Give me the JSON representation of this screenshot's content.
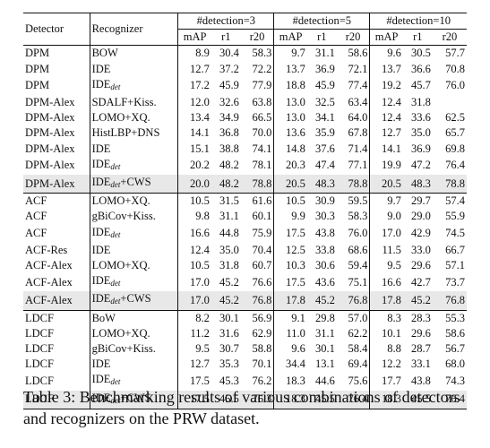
{
  "headers": {
    "detector": "Detector",
    "recognizer": "Recognizer",
    "groups": [
      "#detection=3",
      "#detection=5",
      "#detection=10"
    ],
    "metrics": [
      "mAP",
      "r1",
      "r20"
    ]
  },
  "rows": [
    {
      "det": "DPM",
      "rec": "BOW",
      "vals": [
        "8.9",
        "30.4",
        "58.3",
        "9.7",
        "31.1",
        "58.6",
        "9.6",
        "30.5",
        "57.7"
      ],
      "bold": []
    },
    {
      "det": "DPM",
      "rec": "IDE",
      "vals": [
        "12.7",
        "37.2",
        "72.2",
        "13.7",
        "36.9",
        "72.1",
        "13.7",
        "36.6",
        "70.8"
      ],
      "bold": []
    },
    {
      "det": "DPM",
      "rec": "IDE",
      "rec_sub": "det",
      "vals": [
        "17.2",
        "45.9",
        "77.9",
        "18.8",
        "45.9",
        "77.4",
        "19.2",
        "45.7",
        "76.0"
      ],
      "bold": []
    },
    {
      "det": "DPM-Alex",
      "rec": "SDALF+Kiss.",
      "vals": [
        "12.0",
        "32.6",
        "63.8",
        "13.0",
        "32.5",
        "63.4",
        "12.4",
        "31.8",
        ""
      ],
      "bold": []
    },
    {
      "det": "DPM-Alex",
      "rec": "LOMO+XQ.",
      "vals": [
        "13.4",
        "34.9",
        "66.5",
        "13.0",
        "34.1",
        "64.0",
        "12.4",
        "33.6",
        "62.5"
      ],
      "bold": []
    },
    {
      "det": "DPM-Alex",
      "rec": "HistLBP+DNS",
      "vals": [
        "14.1",
        "36.8",
        "70.0",
        "13.6",
        "35.9",
        "67.8",
        "12.7",
        "35.0",
        "65.7"
      ],
      "bold": []
    },
    {
      "det": "DPM-Alex",
      "rec": "IDE",
      "vals": [
        "15.1",
        "38.8",
        "74.1",
        "14.8",
        "37.6",
        "71.4",
        "14.1",
        "36.9",
        "69.8"
      ],
      "bold": []
    },
    {
      "det": "DPM-Alex",
      "rec": "IDE",
      "rec_sub": "det",
      "vals": [
        "20.2",
        "48.2",
        "78.1",
        "20.3",
        "47.4",
        "77.1",
        "19.9",
        "47.2",
        "76.4"
      ],
      "bold": [
        0,
        1
      ]
    },
    {
      "det": "DPM-Alex",
      "rec": "IDE",
      "rec_sub": "det",
      "rec_suffix": "+CWS",
      "vals": [
        "20.0",
        "48.2",
        "78.8",
        "20.5",
        "48.3",
        "78.8",
        "20.5",
        "48.3",
        "78.8"
      ],
      "bold": [
        1,
        2,
        3,
        4,
        5,
        6,
        7,
        8
      ],
      "highlight": true
    },
    {
      "det": "ACF",
      "rec": "LOMO+XQ.",
      "vals": [
        "10.5",
        "31.5",
        "61.6",
        "10.5",
        "30.9",
        "59.5",
        "9.7",
        "29.7",
        "57.4"
      ],
      "bold": [],
      "group_start": true
    },
    {
      "det": "ACF",
      "rec": "gBiCov+Kiss.",
      "vals": [
        "9.8",
        "31.1",
        "60.1",
        "9.9",
        "30.3",
        "58.3",
        "9.0",
        "29.0",
        "55.9"
      ],
      "bold": []
    },
    {
      "det": "ACF",
      "rec": "IDE",
      "rec_sub": "det",
      "vals": [
        "16.6",
        "44.8",
        "75.9",
        "17.5",
        "43.8",
        "76.0",
        "17.0",
        "42.9",
        "74.5"
      ],
      "bold": []
    },
    {
      "det": "ACF-Res",
      "rec": "IDE",
      "vals": [
        "12.4",
        "35.0",
        "70.4",
        "12.5",
        "33.8",
        "68.6",
        "11.5",
        "33.0",
        "66.7"
      ],
      "bold": []
    },
    {
      "det": "ACF-Alex",
      "rec": "LOMO+XQ.",
      "vals": [
        "10.5",
        "31.8",
        "60.7",
        "10.3",
        "30.6",
        "59.4",
        "9.5",
        "29.6",
        "57.1"
      ],
      "bold": []
    },
    {
      "det": "ACF-Alex",
      "rec": "IDE",
      "rec_sub": "det",
      "vals": [
        "17.0",
        "45.2",
        "76.6",
        "17.5",
        "43.6",
        "75.1",
        "16.6",
        "42.7",
        "73.7"
      ],
      "bold": []
    },
    {
      "det": "ACF-Alex",
      "rec": "IDE",
      "rec_sub": "det",
      "rec_suffix": "+CWS",
      "vals": [
        "17.0",
        "45.2",
        "76.8",
        "17.8",
        "45.2",
        "76.8",
        "17.8",
        "45.2",
        "76.8"
      ],
      "bold": [],
      "highlight": true
    },
    {
      "det": "LDCF",
      "rec": "BoW",
      "vals": [
        "8.2",
        "30.1",
        "56.9",
        "9.1",
        "29.8",
        "57.0",
        "8.3",
        "28.3",
        "55.3"
      ],
      "bold": [],
      "group_start": true
    },
    {
      "det": "LDCF",
      "rec": "LOMO+XQ.",
      "vals": [
        "11.2",
        "31.6",
        "62.9",
        "11.0",
        "31.1",
        "62.2",
        "10.1",
        "29.6",
        "58.6"
      ],
      "bold": []
    },
    {
      "det": "LDCF",
      "rec": "gBiCov+Kiss.",
      "vals": [
        "9.5",
        "30.7",
        "58.8",
        "9.6",
        "30.1",
        "58.4",
        "8.8",
        "28.7",
        "56.7"
      ],
      "bold": []
    },
    {
      "det": "LDCF",
      "rec": "IDE",
      "vals": [
        "12.7",
        "35.3",
        "70.1",
        "34.4",
        "13.1",
        "69.4",
        "12.2",
        "33.1",
        "68.0"
      ],
      "bold": []
    },
    {
      "det": "LDCF",
      "rec": "IDE",
      "rec_sub": "det",
      "vals": [
        "17.5",
        "45.3",
        "76.2",
        "18.3",
        "44.6",
        "75.6",
        "17.7",
        "43.8",
        "74.3"
      ],
      "bold": []
    },
    {
      "det": "LDCF",
      "rec": "IDE",
      "rec_sub": "det",
      "rec_suffix": "+CWS",
      "vals": [
        "17.5",
        "45.5",
        "76.3",
        "18.3",
        "45.5",
        "76.4",
        "18.3",
        "45.5",
        "76.4"
      ],
      "bold": [],
      "highlight": true
    }
  ],
  "caption": "Table 3: Benchmarking results of various combinations of detectors and recognizers on the PRW dataset."
}
